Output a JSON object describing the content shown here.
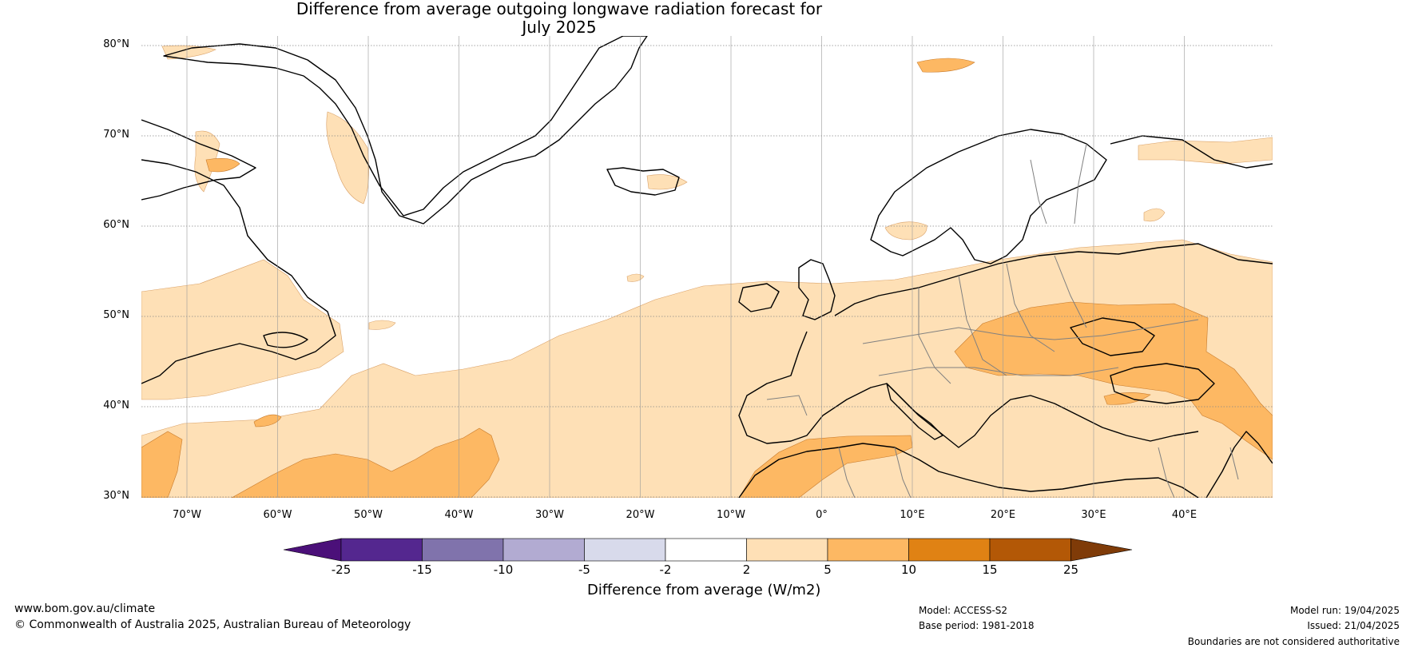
{
  "title": {
    "line1": "Difference from average outgoing longwave radiation forecast for",
    "line2": "July 2025"
  },
  "axes": {
    "lat_labels": [
      "80°N",
      "70°N",
      "60°N",
      "50°N",
      "40°N",
      "30°N"
    ],
    "lon_labels": [
      "70°W",
      "60°W",
      "50°W",
      "40°W",
      "30°W",
      "20°W",
      "10°W",
      "0°",
      "10°E",
      "20°E",
      "30°E",
      "40°E"
    ],
    "lat_range": [
      30,
      81
    ],
    "lon_range": [
      -75,
      50
    ],
    "grid": true
  },
  "colorbar": {
    "title": "Difference from average (W/m2)",
    "ticks": [
      "-25",
      "-15",
      "-10",
      "-5",
      "-2",
      "2",
      "5",
      "10",
      "15",
      "25"
    ],
    "colors": [
      "#4b1079",
      "#54278f",
      "#8073ac",
      "#b2abd2",
      "#d8daeb",
      "#ffffff",
      "#fee0b6",
      "#fdb863",
      "#e08214",
      "#b35806",
      "#7f3b08"
    ]
  },
  "footer": {
    "website": "www.bom.gov.au/climate",
    "copyright": "© Commonwealth of Australia 2025, Australian Bureau of Meteorology",
    "model": "Model: ACCESS-S2",
    "base_period": "Base period: 1981-2018",
    "model_run": "Model run: 19/04/2025",
    "issued": "Issued: 21/04/2025",
    "boundaries_note": "Boundaries are not considered authoritative"
  }
}
